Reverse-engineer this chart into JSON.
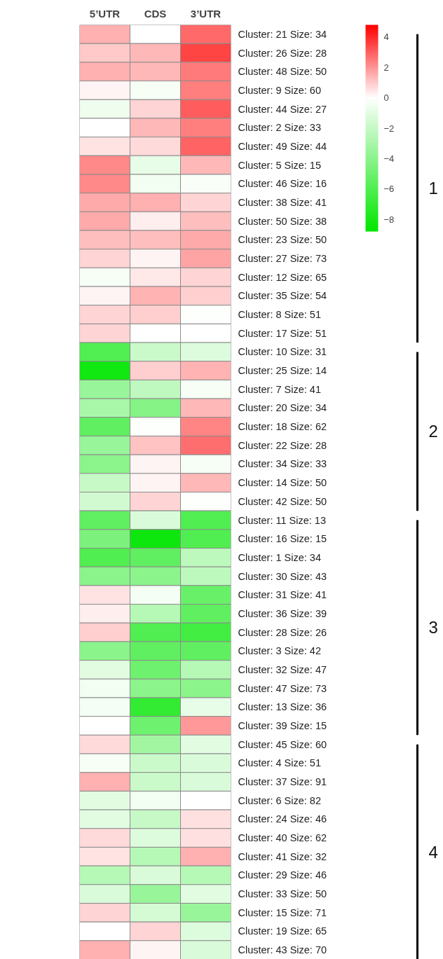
{
  "chart_data": {
    "type": "heatmap",
    "categories": [
      "5’UTR",
      "CDS",
      "3’UTR"
    ],
    "y_categories": [
      "Cluster: 21 Size: 34",
      "Cluster: 26 Size: 28",
      "Cluster: 48 Size: 50",
      "Cluster: 9 Size: 60",
      "Cluster: 44 Size: 27",
      "Cluster: 2 Size: 33",
      "Cluster: 49 Size: 44",
      "Cluster: 5 Size: 15",
      "Cluster: 46 Size: 16",
      "Cluster: 38 Size: 41",
      "Cluster: 50 Size: 38",
      "Cluster: 23 Size: 50",
      "Cluster: 27 Size: 73",
      "Cluster: 12 Size: 65",
      "Cluster: 35 Size: 54",
      "Cluster: 8 Size: 51",
      "Cluster: 17 Size: 51",
      "Cluster: 10 Size: 31",
      "Cluster: 25 Size: 14",
      "Cluster: 7 Size: 41",
      "Cluster: 20 Size: 34",
      "Cluster: 18 Size: 62",
      "Cluster: 22 Size: 28",
      "Cluster: 34 Size: 33",
      "Cluster: 14 Size: 50",
      "Cluster: 42 Size: 50",
      "Cluster: 11 Size: 13",
      "Cluster: 16 Size: 15",
      "Cluster: 1 Size: 34",
      "Cluster: 30 Size: 43",
      "Cluster: 31 Size: 41",
      "Cluster: 36 Size: 39",
      "Cluster: 28 Size: 26",
      "Cluster: 3 Size: 42",
      "Cluster: 32 Size: 47",
      "Cluster: 47 Size: 73",
      "Cluster: 13 Size: 36",
      "Cluster: 39 Size: 15",
      "Cluster: 45 Size: 60",
      "Cluster: 4 Size: 51",
      "Cluster: 37 Size: 91",
      "Cluster: 6 Size: 82",
      "Cluster: 24 Size: 46",
      "Cluster: 40 Size: 62",
      "Cluster: 41 Size: 32",
      "Cluster: 29 Size: 46",
      "Cluster: 33 Size: 50",
      "Cluster: 15 Size: 71",
      "Cluster: 19 Size: 65",
      "Cluster: 43 Size: 70"
    ],
    "cells": [
      [
        1.5,
        0,
        2.8
      ],
      [
        1,
        1.3,
        3.5
      ],
      [
        1.5,
        1.3,
        2.5
      ],
      [
        0.2,
        -0.3,
        2.4
      ],
      [
        -0.6,
        0.8,
        3
      ],
      [
        0,
        1.3,
        2.4
      ],
      [
        0.5,
        0.7,
        2.9
      ],
      [
        2.2,
        -0.8,
        1.3
      ],
      [
        2.2,
        -0.5,
        -0.2
      ],
      [
        1.6,
        1.5,
        0.8
      ],
      [
        1.6,
        0.3,
        1.2
      ],
      [
        1.2,
        1.2,
        1.6
      ],
      [
        0.8,
        0.2,
        1.7
      ],
      [
        -0.3,
        0.4,
        0.8
      ],
      [
        0.2,
        1.4,
        0.9
      ],
      [
        0.8,
        0.9,
        -0.1
      ],
      [
        0.8,
        0,
        0
      ],
      [
        -6,
        -1.8,
        -1.2
      ],
      [
        -8.2,
        0.9,
        1.4
      ],
      [
        -3.5,
        -2.2,
        -0.3
      ],
      [
        -3,
        -4.2,
        1.3
      ],
      [
        -5.5,
        -0.1,
        2.3
      ],
      [
        -3.5,
        1.1,
        2.7
      ],
      [
        -4,
        0.2,
        -0.3
      ],
      [
        -2,
        0.2,
        1.3
      ],
      [
        -1.6,
        0.8,
        -0.1
      ],
      [
        -5.5,
        -1.3,
        -6
      ],
      [
        -4.5,
        -8.3,
        -6
      ],
      [
        -6,
        -5.5,
        -2.3
      ],
      [
        -4,
        -4,
        -2.3
      ],
      [
        0.5,
        -0.4,
        -5.2
      ],
      [
        0.3,
        -2.5,
        -5.5
      ],
      [
        0.9,
        -6,
        -6.5
      ],
      [
        -4,
        -5.5,
        -5.5
      ],
      [
        -1,
        -5,
        -2.5
      ],
      [
        -0.5,
        -4,
        -4
      ],
      [
        -0.4,
        -7,
        -0.8
      ],
      [
        0,
        -5,
        1.9
      ],
      [
        0.7,
        -3.2,
        -1
      ],
      [
        -0.3,
        -1.8,
        -1.3
      ],
      [
        1.5,
        -1.8,
        -1.3
      ],
      [
        -1,
        -0.5,
        0
      ],
      [
        -1,
        -2,
        0.6
      ],
      [
        0.7,
        -1.2,
        0.6
      ],
      [
        0.5,
        -2.5,
        1.5
      ],
      [
        -2.5,
        -1.3,
        -2.5
      ],
      [
        -1.3,
        -3.5,
        -1
      ],
      [
        0.8,
        -1.5,
        -3.5
      ],
      [
        0,
        0.8,
        -1.2
      ],
      [
        1.5,
        0.2,
        -1.3
      ]
    ],
    "clim": [
      -8.8,
      4.8
    ],
    "cticks": [
      -8,
      -6,
      -4,
      -2,
      0,
      2,
      4
    ],
    "annotations": [
      "1",
      "2",
      "3",
      "4"
    ]
  }
}
